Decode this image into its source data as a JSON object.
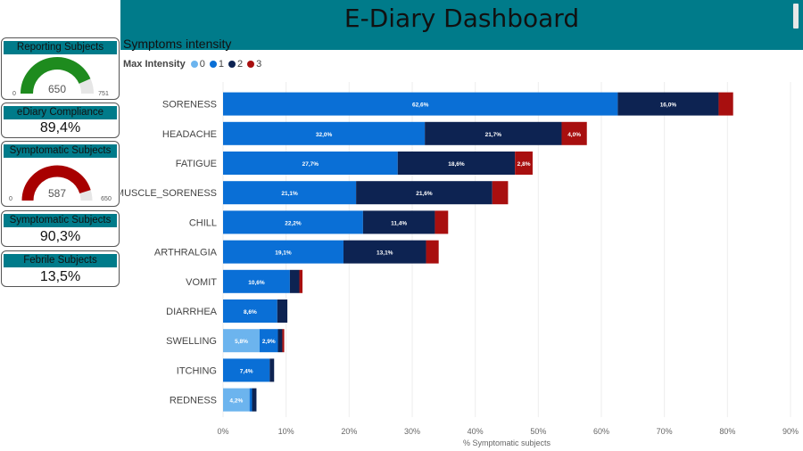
{
  "header": {
    "title": "E-Diary Dashboard"
  },
  "cards": {
    "reporting": {
      "title": "Reporting Subjects",
      "value": "650",
      "min": "0",
      "max": "751",
      "fraction": 0.8655,
      "color": "#1e8b1e"
    },
    "compliance": {
      "title": "eDiary Compliance",
      "value": "89,4%"
    },
    "symptomatic_gauge": {
      "title": "Symptomatic Subjects",
      "value": "587",
      "min": "0",
      "max": "650",
      "fraction": 0.903,
      "color": "#a80000"
    },
    "symptomatic_pct": {
      "title": "Symptomatic Subjects",
      "value": "90,3%"
    },
    "febrile": {
      "title": "Febrile Subjects",
      "value": "13,5%"
    }
  },
  "section": {
    "title": "Symptoms intensity"
  },
  "legend": {
    "title": "Max Intensity",
    "items": [
      {
        "label": "0",
        "color": "#6cb4ee"
      },
      {
        "label": "1",
        "color": "#0a6fd6"
      },
      {
        "label": "2",
        "color": "#0d2352"
      },
      {
        "label": "3",
        "color": "#a80f0f"
      }
    ]
  },
  "chart_data": {
    "type": "bar",
    "orientation": "horizontal",
    "stacked": true,
    "title": "Symptoms intensity",
    "xlabel": "% Symptomatic subjects",
    "ylabel": "",
    "xlim": [
      0,
      90
    ],
    "xticks": [
      0,
      10,
      20,
      30,
      40,
      50,
      60,
      70,
      80,
      90
    ],
    "xtick_labels": [
      "0%",
      "10%",
      "20%",
      "30%",
      "40%",
      "50%",
      "60%",
      "70%",
      "80%",
      "90%"
    ],
    "categories": [
      "SORENESS",
      "HEADACHE",
      "FATIGUE",
      "MUSCLE_SORENESS",
      "CHILL",
      "ARTHRALGIA",
      "VOMIT",
      "DIARRHEA",
      "SWELLING",
      "ITCHING",
      "REDNESS"
    ],
    "series": [
      {
        "name": "0",
        "color": "#6cb4ee",
        "values": [
          0,
          0,
          0,
          0,
          0,
          0,
          0,
          0,
          5.8,
          0,
          4.2
        ],
        "labels": [
          "",
          "",
          "",
          "",
          "",
          "",
          "",
          "",
          "5,8%",
          "",
          "4,2%"
        ]
      },
      {
        "name": "1",
        "color": "#0a6fd6",
        "values": [
          62.6,
          32.0,
          27.7,
          21.1,
          22.2,
          19.1,
          10.6,
          8.6,
          2.9,
          7.4,
          0.4
        ],
        "labels": [
          "62,6%",
          "32,0%",
          "27,7%",
          "21,1%",
          "22,2%",
          "19,1%",
          "10,6%",
          "8,6%",
          "2,9%",
          "7,4%",
          ""
        ]
      },
      {
        "name": "2",
        "color": "#0d2352",
        "values": [
          16.0,
          21.7,
          18.6,
          21.6,
          11.4,
          13.1,
          1.5,
          1.6,
          0.7,
          0.7,
          0.7
        ],
        "labels": [
          "16,0%",
          "21,7%",
          "18,6%",
          "21,6%",
          "11,4%",
          "13,1%",
          "",
          "",
          "",
          "",
          ""
        ]
      },
      {
        "name": "3",
        "color": "#a80f0f",
        "values": [
          2.3,
          4.0,
          2.8,
          2.5,
          2.1,
          2.0,
          0.5,
          0,
          0.3,
          0,
          0
        ],
        "labels": [
          "",
          "4,0%",
          "2,8%",
          "",
          "",
          "",
          "",
          "",
          "",
          "",
          ""
        ]
      }
    ]
  }
}
